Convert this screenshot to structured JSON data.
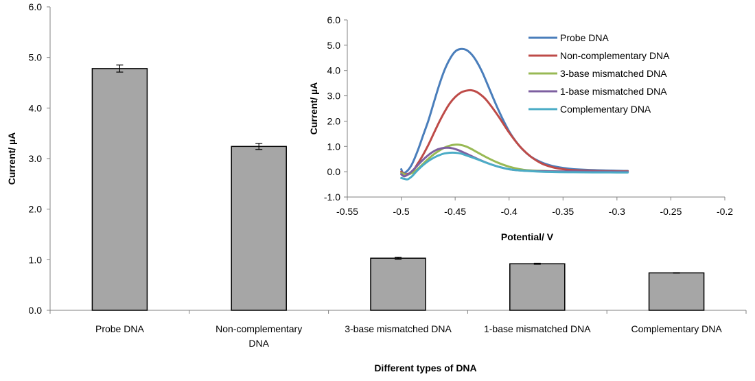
{
  "chart_data": [
    {
      "type": "bar",
      "xlabel": "Different types of DNA",
      "ylabel": "Current/ µA",
      "ylim": [
        0,
        6
      ],
      "yticks": [
        "0.0",
        "1.0",
        "2.0",
        "3.0",
        "4.0",
        "5.0",
        "6.0"
      ],
      "categories": [
        {
          "lines": [
            "Probe DNA"
          ]
        },
        {
          "lines": [
            "Non-complementary",
            "DNA"
          ]
        },
        {
          "lines": [
            "3-base mismatched  DNA"
          ]
        },
        {
          "lines": [
            "1-base mismatched  DNA"
          ]
        },
        {
          "lines": [
            "Complementary  DNA"
          ]
        }
      ],
      "values": [
        4.78,
        3.24,
        1.03,
        0.92,
        0.74
      ],
      "errors": [
        0.07,
        0.06,
        0.02,
        0.01,
        0.005
      ],
      "bar_color": "#a6a6a6",
      "grid": false
    },
    {
      "type": "line",
      "xlabel": "Potential/  V",
      "ylabel": "Current/ µA",
      "xlim": [
        -0.55,
        -0.2
      ],
      "ylim": [
        -1.0,
        6.0
      ],
      "xticks": [
        "-0.55",
        "-0.5",
        "-0.45",
        "-0.4",
        "-0.35",
        "-0.3",
        "-0.25",
        "-0.2"
      ],
      "yticks": [
        "-1.0",
        "0.0",
        "1.0",
        "2.0",
        "3.0",
        "4.0",
        "5.0",
        "6.0"
      ],
      "legend": "top-right",
      "series": [
        {
          "name": "Probe DNA",
          "color": "#4a7ebb",
          "points": [
            [
              -0.5,
              0.1
            ],
            [
              -0.498,
              -0.05
            ],
            [
              -0.494,
              0.05
            ],
            [
              -0.49,
              0.3
            ],
            [
              -0.485,
              0.8
            ],
            [
              -0.48,
              1.4
            ],
            [
              -0.475,
              2.0
            ],
            [
              -0.47,
              2.7
            ],
            [
              -0.465,
              3.4
            ],
            [
              -0.46,
              4.0
            ],
            [
              -0.455,
              4.45
            ],
            [
              -0.45,
              4.75
            ],
            [
              -0.445,
              4.85
            ],
            [
              -0.44,
              4.82
            ],
            [
              -0.435,
              4.65
            ],
            [
              -0.43,
              4.35
            ],
            [
              -0.425,
              3.95
            ],
            [
              -0.42,
              3.45
            ],
            [
              -0.41,
              2.45
            ],
            [
              -0.4,
              1.6
            ],
            [
              -0.39,
              1.0
            ],
            [
              -0.38,
              0.6
            ],
            [
              -0.37,
              0.37
            ],
            [
              -0.36,
              0.23
            ],
            [
              -0.35,
              0.15
            ],
            [
              -0.34,
              0.1
            ],
            [
              -0.32,
              0.06
            ],
            [
              -0.3,
              0.04
            ],
            [
              -0.29,
              0.03
            ]
          ]
        },
        {
          "name": "Non-complementary  DNA",
          "color": "#be4b48",
          "points": [
            [
              -0.5,
              0.0
            ],
            [
              -0.496,
              -0.1
            ],
            [
              -0.49,
              0.0
            ],
            [
              -0.485,
              0.3
            ],
            [
              -0.48,
              0.65
            ],
            [
              -0.475,
              1.05
            ],
            [
              -0.47,
              1.5
            ],
            [
              -0.465,
              1.95
            ],
            [
              -0.46,
              2.35
            ],
            [
              -0.455,
              2.7
            ],
            [
              -0.45,
              2.95
            ],
            [
              -0.445,
              3.12
            ],
            [
              -0.44,
              3.2
            ],
            [
              -0.435,
              3.22
            ],
            [
              -0.43,
              3.15
            ],
            [
              -0.425,
              3.0
            ],
            [
              -0.42,
              2.78
            ],
            [
              -0.41,
              2.2
            ],
            [
              -0.4,
              1.55
            ],
            [
              -0.39,
              1.0
            ],
            [
              -0.38,
              0.6
            ],
            [
              -0.37,
              0.33
            ],
            [
              -0.36,
              0.18
            ],
            [
              -0.35,
              0.1
            ],
            [
              -0.34,
              0.06
            ],
            [
              -0.32,
              0.03
            ],
            [
              -0.3,
              0.02
            ],
            [
              -0.29,
              0.02
            ]
          ]
        },
        {
          "name": "3-base mismatched  DNA",
          "color": "#98b954",
          "points": [
            [
              -0.5,
              -0.05
            ],
            [
              -0.495,
              -0.12
            ],
            [
              -0.49,
              -0.05
            ],
            [
              -0.485,
              0.1
            ],
            [
              -0.48,
              0.3
            ],
            [
              -0.475,
              0.5
            ],
            [
              -0.47,
              0.68
            ],
            [
              -0.465,
              0.83
            ],
            [
              -0.46,
              0.95
            ],
            [
              -0.455,
              1.03
            ],
            [
              -0.45,
              1.07
            ],
            [
              -0.445,
              1.06
            ],
            [
              -0.44,
              1.0
            ],
            [
              -0.435,
              0.9
            ],
            [
              -0.43,
              0.78
            ],
            [
              -0.42,
              0.55
            ],
            [
              -0.41,
              0.35
            ],
            [
              -0.4,
              0.2
            ],
            [
              -0.39,
              0.1
            ],
            [
              -0.38,
              0.05
            ],
            [
              -0.36,
              0.02
            ],
            [
              -0.34,
              0.0
            ],
            [
              -0.3,
              0.0
            ],
            [
              -0.29,
              0.0
            ]
          ]
        },
        {
          "name": "1-base mismatched  DNA",
          "color": "#7d5fa0",
          "points": [
            [
              -0.5,
              -0.1
            ],
            [
              -0.497,
              -0.18
            ],
            [
              -0.492,
              -0.05
            ],
            [
              -0.487,
              0.15
            ],
            [
              -0.482,
              0.38
            ],
            [
              -0.477,
              0.58
            ],
            [
              -0.472,
              0.75
            ],
            [
              -0.467,
              0.87
            ],
            [
              -0.462,
              0.93
            ],
            [
              -0.457,
              0.95
            ],
            [
              -0.452,
              0.92
            ],
            [
              -0.447,
              0.85
            ],
            [
              -0.44,
              0.72
            ],
            [
              -0.43,
              0.52
            ],
            [
              -0.42,
              0.34
            ],
            [
              -0.41,
              0.2
            ],
            [
              -0.4,
              0.1
            ],
            [
              -0.39,
              0.05
            ],
            [
              -0.37,
              0.02
            ],
            [
              -0.34,
              0.01
            ],
            [
              -0.3,
              0.0
            ],
            [
              -0.29,
              0.0
            ]
          ]
        },
        {
          "name": "Complementary  DNA",
          "color": "#4bacc6",
          "points": [
            [
              -0.5,
              -0.25
            ],
            [
              -0.497,
              -0.28
            ],
            [
              -0.494,
              -0.3
            ],
            [
              -0.49,
              -0.18
            ],
            [
              -0.485,
              0.05
            ],
            [
              -0.48,
              0.25
            ],
            [
              -0.475,
              0.42
            ],
            [
              -0.47,
              0.55
            ],
            [
              -0.465,
              0.65
            ],
            [
              -0.46,
              0.72
            ],
            [
              -0.455,
              0.75
            ],
            [
              -0.45,
              0.75
            ],
            [
              -0.445,
              0.72
            ],
            [
              -0.44,
              0.65
            ],
            [
              -0.43,
              0.5
            ],
            [
              -0.42,
              0.34
            ],
            [
              -0.41,
              0.2
            ],
            [
              -0.4,
              0.1
            ],
            [
              -0.39,
              0.05
            ],
            [
              -0.37,
              0.0
            ],
            [
              -0.34,
              -0.02
            ],
            [
              -0.3,
              -0.03
            ],
            [
              -0.29,
              -0.03
            ]
          ]
        }
      ]
    }
  ]
}
